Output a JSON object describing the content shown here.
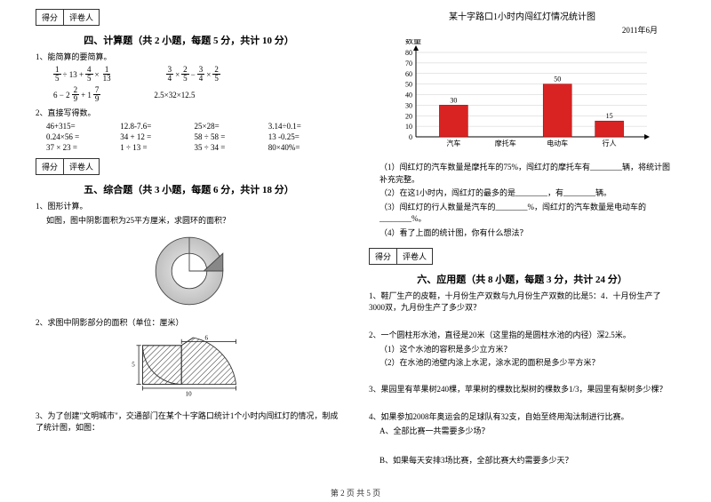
{
  "score_labels": {
    "score": "得分",
    "grader": "评卷人"
  },
  "section4": {
    "title": "四、计算题（共 2 小题，每题 5 分，共计 10 分）",
    "q1": "1、能简算的要简算。",
    "exprs": {
      "e1a": "1/5 ÷ 13 + 4/5 × 1/13",
      "e1b": "3/4 × 2/5 − 3/4 × 2/5",
      "e2a": "6 − 2 2/9 + 1 7/9",
      "e2b": "2.5×32×12.5"
    },
    "q2": "2、直接写得数。",
    "grid": [
      "46+315=",
      "12.8-7.6=",
      "25×28=",
      "3.14÷0.1=",
      "0.24×56  =",
      "34 + 12  =",
      "58 ÷ 58  =",
      "13 -0.25=",
      "37  ×  23  =",
      "1 ÷ 13  =",
      "35  ÷  34  =",
      "80×40%="
    ]
  },
  "section5": {
    "title": "五、综合题（共 3 小题，每题 6 分，共计 18 分）",
    "q1": "1、图形计算。",
    "q1_desc": "如图，图中阴影面积为25平方厘米，求圆环的面积？",
    "q2": "2、求图中阴影部分的面积（单位：厘米）",
    "q3": "3、为了创建\"文明城市\"，交通部门在某个十字路口统计1个小时内闯红灯的情况，制成了统计图，如图：",
    "dim5": "5",
    "dim6": "6",
    "dim10": "10"
  },
  "chart": {
    "title": "某十字路口1小时内闯红灯情况统计图",
    "date": "2011年6月",
    "ylabel": "数量",
    "ymax": 80,
    "ytick_step": 10,
    "categories": [
      "汽车",
      "摩托车",
      "电动车",
      "行人"
    ],
    "values": [
      30,
      null,
      50,
      15
    ],
    "value_labels": [
      "30",
      "",
      "50",
      "15"
    ],
    "bar_color": "#d92323",
    "axis_color": "#000000",
    "grid_color": "#cccccc",
    "bg": "#ffffff"
  },
  "chart_q": {
    "q1": "（1）闯红灯的汽车数量是摩托车的75%，闯红灯的摩托车有________辆，将统计图补充完整。",
    "q2": "（2）在这1小时内，闯红灯的最多的是________，有________辆。",
    "q3": "（3）闯红灯的行人数量是汽车的________%，闯红灯的汽车数量是电动车的________%。",
    "q4": "（4）看了上面的统计图，你有什么想法？"
  },
  "section6": {
    "title": "六、应用题（共 8 小题，每题 3 分，共计 24 分）",
    "q1": "1、鞋厂生产的皮鞋，十月份生产双数与九月份生产双数的比是5：4．十月份生产了3000双，九月份生产了多少双？",
    "q2": "2、一个圆柱形水池，直径是20米（这里指的是圆柱水池的内径）深2.5米。",
    "q2a": "（1）这个水池的容积是多少立方米？",
    "q2b": "（2）在水池的池壁内涂上水泥，涂水泥的面积是多少平方米？",
    "q3": "3、果园里有苹果树240棵，苹果树的棵数比梨树的棵数多1/3，果园里有梨树多少棵？",
    "q4": "4、如果参加2008年奥运会的足球队有32支，自始至终用淘汰制进行比赛。",
    "q4a": "A、全部比赛一共需要多少场？",
    "q4b": "B、如果每天安排3场比赛，全部比赛大约需要多少天？"
  },
  "footer": "第  2  页  共  5  页"
}
